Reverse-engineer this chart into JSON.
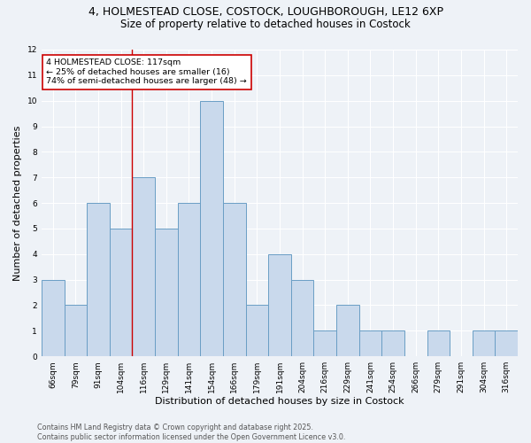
{
  "title_line1": "4, HOLMESTEAD CLOSE, COSTOCK, LOUGHBOROUGH, LE12 6XP",
  "title_line2": "Size of property relative to detached houses in Costock",
  "xlabel": "Distribution of detached houses by size in Costock",
  "ylabel": "Number of detached properties",
  "categories": [
    "66sqm",
    "79sqm",
    "91sqm",
    "104sqm",
    "116sqm",
    "129sqm",
    "141sqm",
    "154sqm",
    "166sqm",
    "179sqm",
    "191sqm",
    "204sqm",
    "216sqm",
    "229sqm",
    "241sqm",
    "254sqm",
    "266sqm",
    "279sqm",
    "291sqm",
    "304sqm",
    "316sqm"
  ],
  "values": [
    3,
    2,
    6,
    5,
    7,
    5,
    6,
    10,
    6,
    2,
    4,
    3,
    1,
    2,
    1,
    1,
    0,
    1,
    0,
    1,
    1
  ],
  "bar_color": "#c9d9ec",
  "bar_edge_color": "#6a9ec5",
  "highlight_index": 4,
  "annotation_text": "4 HOLMESTEAD CLOSE: 117sqm\n← 25% of detached houses are smaller (16)\n74% of semi-detached houses are larger (48) →",
  "annotation_box_color": "white",
  "annotation_box_edge_color": "#cc0000",
  "red_line_color": "#cc0000",
  "ylim": [
    0,
    12
  ],
  "yticks": [
    0,
    1,
    2,
    3,
    4,
    5,
    6,
    7,
    8,
    9,
    10,
    11,
    12
  ],
  "footer_text": "Contains HM Land Registry data © Crown copyright and database right 2025.\nContains public sector information licensed under the Open Government Licence v3.0.",
  "background_color": "#eef2f7",
  "grid_color": "white",
  "title_fontsize": 9,
  "subtitle_fontsize": 8.5,
  "axis_label_fontsize": 8,
  "tick_fontsize": 6.5,
  "annotation_fontsize": 6.8,
  "footer_fontsize": 5.8
}
